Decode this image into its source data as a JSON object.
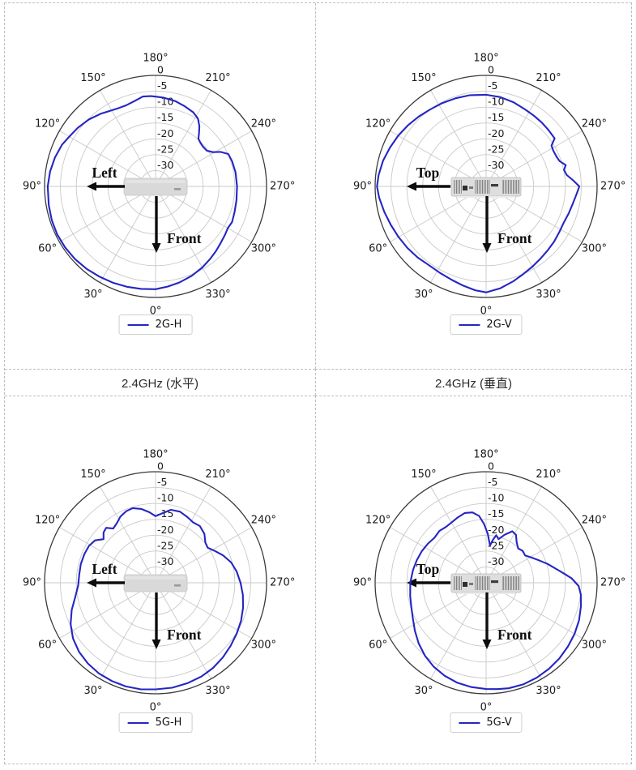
{
  "page": {
    "background": "#ffffff",
    "table_border_color": "#bdbdbd"
  },
  "captions": [
    {
      "text": "2.4GHz (水平)"
    },
    {
      "text": "2.4GHz (垂直)"
    }
  ],
  "polar_axis": {
    "units": "dB",
    "angular_ticks": [
      "0°",
      "30°",
      "60°",
      "90°",
      "120°",
      "150°",
      "180°",
      "210°",
      "240°",
      "270°",
      "300°",
      "330°"
    ],
    "angular_tick_step_deg": 30,
    "zero_location": "bottom",
    "direction": "clockwise",
    "radial_ticks": [
      "0",
      "-5",
      "-10",
      "-15",
      "-20",
      "-25",
      "-30"
    ],
    "radial_tick_values": [
      0,
      -5,
      -10,
      -15,
      -20,
      -25,
      -30
    ],
    "r_max": 0,
    "r_min": -35,
    "grid": true,
    "grid_color": "#c9c9c9",
    "spine_color": "#3a3a3a",
    "series_color": "#2525c4"
  },
  "chart_data": [
    {
      "type": "polar-line",
      "legend": "2G-H",
      "device": "front",
      "side_label": "Left",
      "front_label": "Front",
      "points": [
        [
          0,
          -2.6
        ],
        [
          8,
          -2.4
        ],
        [
          16,
          -2.1
        ],
        [
          24,
          -1.8
        ],
        [
          32,
          -1.5
        ],
        [
          40,
          -1.1
        ],
        [
          48,
          -0.8
        ],
        [
          56,
          -0.6
        ],
        [
          64,
          -0.5
        ],
        [
          72,
          -0.6
        ],
        [
          80,
          -0.8
        ],
        [
          90,
          -1.0
        ],
        [
          98,
          -1.4
        ],
        [
          106,
          -2.0
        ],
        [
          114,
          -2.7
        ],
        [
          120,
          -3.6
        ],
        [
          127,
          -4.3
        ],
        [
          135,
          -5.2
        ],
        [
          143,
          -6.3
        ],
        [
          150,
          -7.3
        ],
        [
          155,
          -7.7
        ],
        [
          160,
          -7.8
        ],
        [
          166,
          -7.3
        ],
        [
          172,
          -6.4
        ],
        [
          177,
          -6.5
        ],
        [
          180,
          -6.7
        ],
        [
          185,
          -6.9
        ],
        [
          193,
          -7.4
        ],
        [
          200,
          -8.1
        ],
        [
          207,
          -8.8
        ],
        [
          212,
          -9.8
        ],
        [
          216,
          -11.5
        ],
        [
          219,
          -13.2
        ],
        [
          222,
          -14.8
        ],
        [
          226,
          -15.3
        ],
        [
          230,
          -15.5
        ],
        [
          235,
          -15.3
        ],
        [
          239,
          -14.0
        ],
        [
          242,
          -11.8
        ],
        [
          246,
          -9.9
        ],
        [
          252,
          -9.6
        ],
        [
          260,
          -9.4
        ],
        [
          270,
          -9.3
        ],
        [
          280,
          -9.1
        ],
        [
          288,
          -8.8
        ],
        [
          295,
          -8.4
        ],
        [
          300,
          -8.7
        ],
        [
          305,
          -8.3
        ],
        [
          311,
          -7.8
        ],
        [
          317,
          -7.1
        ],
        [
          323,
          -6.4
        ],
        [
          330,
          -5.5
        ],
        [
          338,
          -4.6
        ],
        [
          346,
          -3.8
        ],
        [
          353,
          -3.2
        ],
        [
          360,
          -2.6
        ]
      ]
    },
    {
      "type": "polar-line",
      "legend": "2G-V",
      "device": "top",
      "side_label": "Top",
      "front_label": "Front",
      "points": [
        [
          0,
          -1.6
        ],
        [
          6,
          -2.1
        ],
        [
          13,
          -2.9
        ],
        [
          20,
          -3.6
        ],
        [
          28,
          -4.1
        ],
        [
          36,
          -4.3
        ],
        [
          44,
          -3.9
        ],
        [
          52,
          -3.5
        ],
        [
          60,
          -3.1
        ],
        [
          68,
          -2.6
        ],
        [
          76,
          -1.9
        ],
        [
          84,
          -1.1
        ],
        [
          90,
          -0.6
        ],
        [
          96,
          -0.9
        ],
        [
          104,
          -1.5
        ],
        [
          112,
          -2.3
        ],
        [
          120,
          -3.0
        ],
        [
          128,
          -3.7
        ],
        [
          136,
          -4.4
        ],
        [
          144,
          -5.0
        ],
        [
          152,
          -5.3
        ],
        [
          161,
          -5.6
        ],
        [
          170,
          -5.8
        ],
        [
          180,
          -6.1
        ],
        [
          189,
          -6.5
        ],
        [
          198,
          -7.1
        ],
        [
          207,
          -7.8
        ],
        [
          214,
          -8.1
        ],
        [
          221,
          -8.3
        ],
        [
          228,
          -8.5
        ],
        [
          235,
          -8.6
        ],
        [
          238,
          -10.7
        ],
        [
          242,
          -11.0
        ],
        [
          247,
          -10.9
        ],
        [
          251,
          -10.5
        ],
        [
          255,
          -9.0
        ],
        [
          258,
          -9.9
        ],
        [
          262,
          -9.3
        ],
        [
          266,
          -7.5
        ],
        [
          270,
          -5.6
        ],
        [
          275,
          -6.4
        ],
        [
          281,
          -7.1
        ],
        [
          288,
          -7.6
        ],
        [
          295,
          -8.0
        ],
        [
          302,
          -7.8
        ],
        [
          309,
          -7.4
        ],
        [
          316,
          -7.0
        ],
        [
          323,
          -6.5
        ],
        [
          330,
          -5.8
        ],
        [
          337,
          -5.0
        ],
        [
          344,
          -3.9
        ],
        [
          352,
          -2.6
        ],
        [
          360,
          -1.6
        ]
      ]
    },
    {
      "type": "polar-line",
      "legend": "5G-H",
      "device": "front",
      "side_label": "Left",
      "front_label": "Front",
      "points": [
        [
          0,
          -1.4
        ],
        [
          8,
          -1.1
        ],
        [
          16,
          -1.0
        ],
        [
          24,
          -1.1
        ],
        [
          32,
          -1.3
        ],
        [
          40,
          -1.8
        ],
        [
          48,
          -2.5
        ],
        [
          56,
          -3.6
        ],
        [
          64,
          -5.2
        ],
        [
          72,
          -7.2
        ],
        [
          80,
          -9.3
        ],
        [
          88,
          -10.6
        ],
        [
          96,
          -10.8
        ],
        [
          104,
          -10.7
        ],
        [
          112,
          -10.8
        ],
        [
          119,
          -11.0
        ],
        [
          125,
          -11.7
        ],
        [
          130,
          -13.6
        ],
        [
          134,
          -12.2
        ],
        [
          138,
          -11.7
        ],
        [
          142,
          -13.3
        ],
        [
          147,
          -12.6
        ],
        [
          152,
          -11.4
        ],
        [
          158,
          -10.6
        ],
        [
          163,
          -10.4
        ],
        [
          169,
          -11.3
        ],
        [
          175,
          -12.7
        ],
        [
          180,
          -14.0
        ],
        [
          186,
          -12.9
        ],
        [
          192,
          -11.5
        ],
        [
          199,
          -11.3
        ],
        [
          206,
          -12.0
        ],
        [
          212,
          -12.6
        ],
        [
          218,
          -12.3
        ],
        [
          225,
          -13.2
        ],
        [
          231,
          -14.8
        ],
        [
          236,
          -15.2
        ],
        [
          242,
          -13.7
        ],
        [
          248,
          -12.0
        ],
        [
          255,
          -10.3
        ],
        [
          262,
          -9.2
        ],
        [
          270,
          -8.2
        ],
        [
          278,
          -7.2
        ],
        [
          286,
          -6.3
        ],
        [
          294,
          -5.5
        ],
        [
          302,
          -4.8
        ],
        [
          310,
          -4.1
        ],
        [
          318,
          -3.3
        ],
        [
          326,
          -2.6
        ],
        [
          334,
          -2.1
        ],
        [
          342,
          -1.8
        ],
        [
          351,
          -1.5
        ],
        [
          360,
          -1.4
        ]
      ]
    },
    {
      "type": "polar-line",
      "legend": "5G-V",
      "device": "top",
      "side_label": "Top",
      "front_label": "Front",
      "points": [
        [
          0,
          -1.5
        ],
        [
          8,
          -1.8
        ],
        [
          16,
          -2.2
        ],
        [
          24,
          -2.9
        ],
        [
          32,
          -3.8
        ],
        [
          40,
          -5.0
        ],
        [
          48,
          -6.4
        ],
        [
          56,
          -7.9
        ],
        [
          64,
          -9.3
        ],
        [
          72,
          -10.2
        ],
        [
          80,
          -10.7
        ],
        [
          90,
          -11.1
        ],
        [
          100,
          -11.6
        ],
        [
          108,
          -12.0
        ],
        [
          116,
          -12.4
        ],
        [
          124,
          -12.9
        ],
        [
          131,
          -13.4
        ],
        [
          138,
          -13.0
        ],
        [
          144,
          -13.3
        ],
        [
          150,
          -13.1
        ],
        [
          156,
          -12.6
        ],
        [
          163,
          -12.0
        ],
        [
          169,
          -12.4
        ],
        [
          174,
          -13.8
        ],
        [
          178,
          -16.5
        ],
        [
          182,
          -19.6
        ],
        [
          186,
          -23.2
        ],
        [
          189,
          -21.3
        ],
        [
          192,
          -19.7
        ],
        [
          196,
          -20.7
        ],
        [
          201,
          -18.8
        ],
        [
          207,
          -16.8
        ],
        [
          212,
          -17.2
        ],
        [
          217,
          -19.0
        ],
        [
          223,
          -20.2
        ],
        [
          229,
          -19.7
        ],
        [
          235,
          -20.0
        ],
        [
          241,
          -18.6
        ],
        [
          247,
          -16.9
        ],
        [
          253,
          -14.7
        ],
        [
          259,
          -12.4
        ],
        [
          263,
          -10.4
        ],
        [
          267,
          -8.0
        ],
        [
          272,
          -5.8
        ],
        [
          277,
          -4.9
        ],
        [
          284,
          -4.2
        ],
        [
          292,
          -3.4
        ],
        [
          300,
          -2.8
        ],
        [
          308,
          -2.3
        ],
        [
          316,
          -1.8
        ],
        [
          324,
          -1.4
        ],
        [
          332,
          -1.1
        ],
        [
          340,
          -0.9
        ],
        [
          348,
          -1.0
        ],
        [
          354,
          -1.3
        ],
        [
          360,
          -1.5
        ]
      ]
    }
  ]
}
